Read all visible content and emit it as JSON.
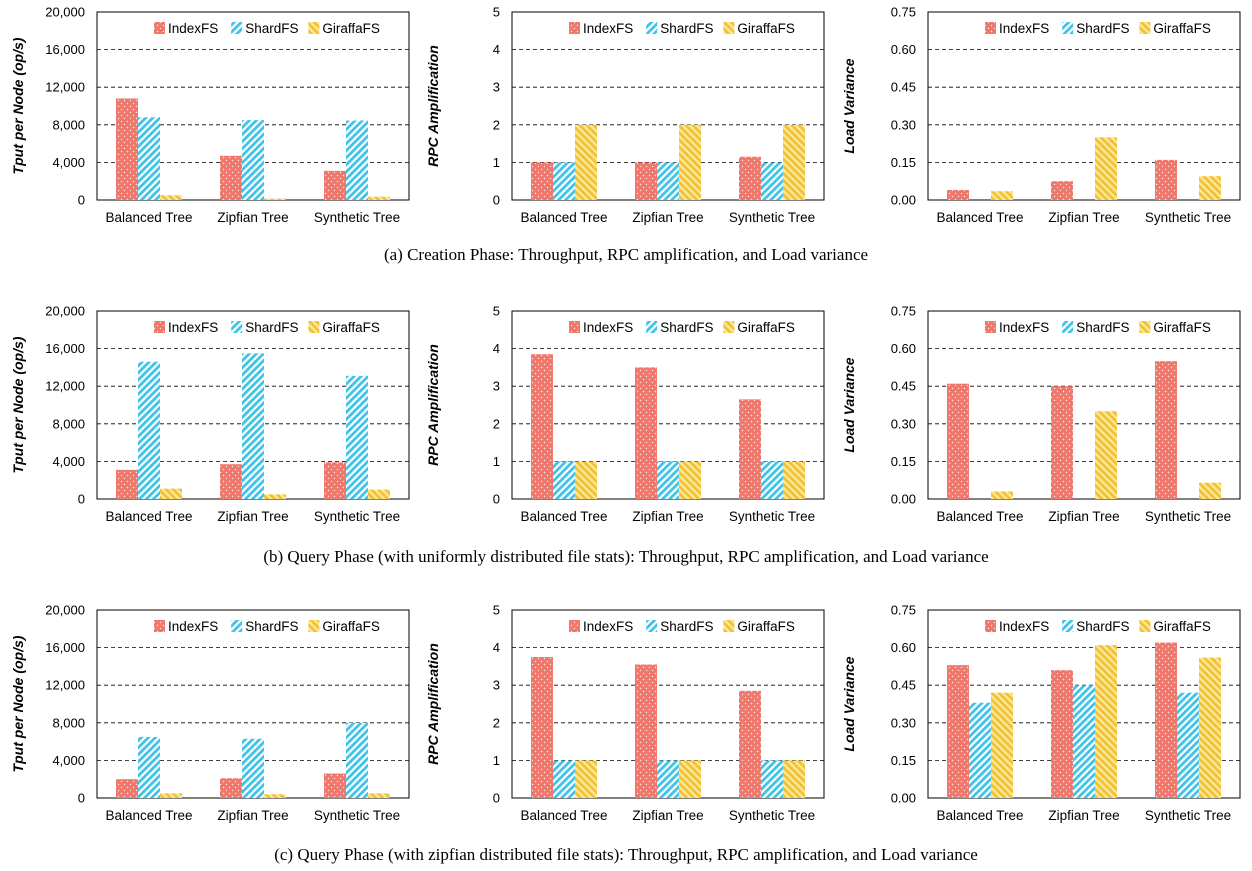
{
  "legend": [
    "IndexFS",
    "ShardFS",
    "GiraffaFS"
  ],
  "captions": [
    "(a) Creation Phase: Throughput, RPC amplification, and Load variance",
    "(b) Query Phase (with uniformly distributed file stats): Throughput, RPC amplification, and Load variance",
    "(c) Query Phase (with zipfian distributed file stats): Throughput, RPC amplification, and Load variance"
  ],
  "colors": {
    "IndexFS": "#f0776b",
    "ShardFS": "#3fc3e6",
    "GiraffaFS": "#f5cf45"
  },
  "chart_data": [
    {
      "type": "bar",
      "row": 0,
      "col": 0,
      "ylabel": "Tput per Node (op/s)",
      "ylim": [
        0,
        20000
      ],
      "yticks": [
        "0",
        "4,000",
        "8,000",
        "12,000",
        "16,000",
        "20,000"
      ],
      "categories": [
        "Balanced Tree",
        "Zipfian Tree",
        "Synthetic Tree"
      ],
      "series": [
        {
          "name": "IndexFS",
          "values": [
            10800,
            4700,
            3100
          ]
        },
        {
          "name": "ShardFS",
          "values": [
            8800,
            8500,
            8450
          ]
        },
        {
          "name": "GiraffaFS",
          "values": [
            500,
            150,
            350
          ]
        }
      ]
    },
    {
      "type": "bar",
      "row": 0,
      "col": 1,
      "ylabel": "RPC Amplification",
      "ylim": [
        0,
        5
      ],
      "yticks": [
        "0",
        "1",
        "2",
        "3",
        "4",
        "5"
      ],
      "categories": [
        "Balanced Tree",
        "Zipfian Tree",
        "Synthetic Tree"
      ],
      "series": [
        {
          "name": "IndexFS",
          "values": [
            1.0,
            1.0,
            1.15
          ]
        },
        {
          "name": "ShardFS",
          "values": [
            1.0,
            1.0,
            1.0
          ]
        },
        {
          "name": "GiraffaFS",
          "values": [
            2.0,
            2.0,
            2.0
          ]
        }
      ]
    },
    {
      "type": "bar",
      "row": 0,
      "col": 2,
      "ylabel": "Load Variance",
      "ylim": [
        0,
        0.75
      ],
      "yticks": [
        "0.00",
        "0.15",
        "0.30",
        "0.45",
        "0.60",
        "0.75"
      ],
      "categories": [
        "Balanced Tree",
        "Zipfian Tree",
        "Synthetic Tree"
      ],
      "series": [
        {
          "name": "IndexFS",
          "values": [
            0.04,
            0.075,
            0.16
          ]
        },
        {
          "name": "ShardFS",
          "values": [
            0,
            0,
            0
          ]
        },
        {
          "name": "GiraffaFS",
          "values": [
            0.035,
            0.25,
            0.095
          ]
        }
      ]
    },
    {
      "type": "bar",
      "row": 1,
      "col": 0,
      "ylabel": "Tput per Node (op/s)",
      "ylim": [
        0,
        20000
      ],
      "yticks": [
        "0",
        "4,000",
        "8,000",
        "12,000",
        "16,000",
        "20,000"
      ],
      "categories": [
        "Balanced Tree",
        "Zipfian Tree",
        "Synthetic Tree"
      ],
      "series": [
        {
          "name": "IndexFS",
          "values": [
            3100,
            3700,
            3900
          ]
        },
        {
          "name": "ShardFS",
          "values": [
            14600,
            15500,
            13100
          ]
        },
        {
          "name": "GiraffaFS",
          "values": [
            1100,
            500,
            1000
          ]
        }
      ]
    },
    {
      "type": "bar",
      "row": 1,
      "col": 1,
      "ylabel": "RPC Amplification",
      "ylim": [
        0,
        5
      ],
      "yticks": [
        "0",
        "1",
        "2",
        "3",
        "4",
        "5"
      ],
      "categories": [
        "Balanced Tree",
        "Zipfian Tree",
        "Synthetic Tree"
      ],
      "series": [
        {
          "name": "IndexFS",
          "values": [
            3.85,
            3.5,
            2.65
          ]
        },
        {
          "name": "ShardFS",
          "values": [
            1.0,
            1.0,
            1.0
          ]
        },
        {
          "name": "GiraffaFS",
          "values": [
            1.0,
            1.0,
            1.0
          ]
        }
      ]
    },
    {
      "type": "bar",
      "row": 1,
      "col": 2,
      "ylabel": "Load Variance",
      "ylim": [
        0,
        0.75
      ],
      "yticks": [
        "0.00",
        "0.15",
        "0.30",
        "0.45",
        "0.60",
        "0.75"
      ],
      "categories": [
        "Balanced Tree",
        "Zipfian Tree",
        "Synthetic Tree"
      ],
      "series": [
        {
          "name": "IndexFS",
          "values": [
            0.46,
            0.45,
            0.55
          ]
        },
        {
          "name": "ShardFS",
          "values": [
            0,
            0,
            0
          ]
        },
        {
          "name": "GiraffaFS",
          "values": [
            0.03,
            0.35,
            0.065
          ]
        }
      ]
    },
    {
      "type": "bar",
      "row": 2,
      "col": 0,
      "ylabel": "Tput per Node (op/s)",
      "ylim": [
        0,
        20000
      ],
      "yticks": [
        "0",
        "4,000",
        "8,000",
        "12,000",
        "16,000",
        "20,000"
      ],
      "categories": [
        "Balanced Tree",
        "Zipfian Tree",
        "Synthetic Tree"
      ],
      "series": [
        {
          "name": "IndexFS",
          "values": [
            2000,
            2100,
            2600
          ]
        },
        {
          "name": "ShardFS",
          "values": [
            6500,
            6300,
            8000
          ]
        },
        {
          "name": "GiraffaFS",
          "values": [
            500,
            400,
            500
          ]
        }
      ]
    },
    {
      "type": "bar",
      "row": 2,
      "col": 1,
      "ylabel": "RPC Amplification",
      "ylim": [
        0,
        5
      ],
      "yticks": [
        "0",
        "1",
        "2",
        "3",
        "4",
        "5"
      ],
      "categories": [
        "Balanced Tree",
        "Zipfian Tree",
        "Synthetic Tree"
      ],
      "series": [
        {
          "name": "IndexFS",
          "values": [
            3.75,
            3.55,
            2.85
          ]
        },
        {
          "name": "ShardFS",
          "values": [
            1.0,
            1.0,
            1.0
          ]
        },
        {
          "name": "GiraffaFS",
          "values": [
            1.0,
            1.0,
            1.0
          ]
        }
      ]
    },
    {
      "type": "bar",
      "row": 2,
      "col": 2,
      "ylabel": "Load Variance",
      "ylim": [
        0,
        0.75
      ],
      "yticks": [
        "0.00",
        "0.15",
        "0.30",
        "0.45",
        "0.60",
        "0.75"
      ],
      "categories": [
        "Balanced Tree",
        "Zipfian Tree",
        "Synthetic Tree"
      ],
      "series": [
        {
          "name": "IndexFS",
          "values": [
            0.53,
            0.51,
            0.62
          ]
        },
        {
          "name": "ShardFS",
          "values": [
            0.38,
            0.45,
            0.42
          ]
        },
        {
          "name": "GiraffaFS",
          "values": [
            0.42,
            0.61,
            0.56
          ]
        }
      ]
    }
  ]
}
